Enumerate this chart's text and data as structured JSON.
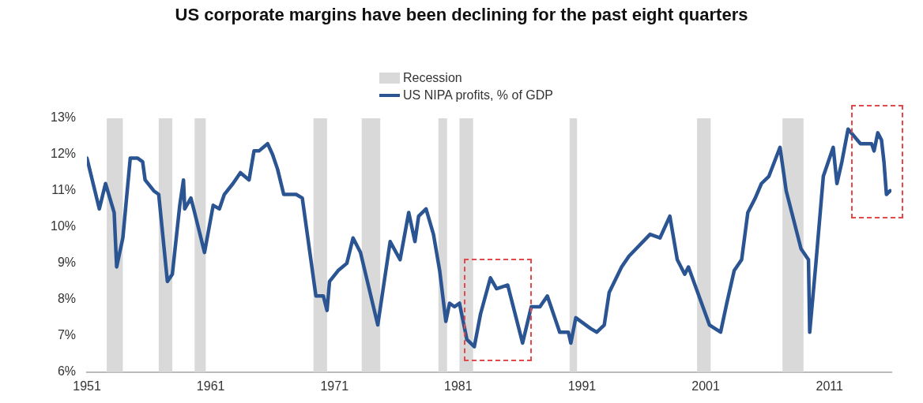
{
  "chart_data": {
    "type": "line",
    "title": "US corporate margins have been declining for the past eight quarters",
    "series": [
      {
        "name": "US NIPA profits, % of GDP",
        "color": "#2b5592",
        "x": [
          1951.0,
          1952.0,
          1952.5,
          1953.2,
          1953.4,
          1953.9,
          1954.5,
          1955.1,
          1955.5,
          1955.7,
          1956.4,
          1956.8,
          1957.5,
          1957.9,
          1958.5,
          1958.8,
          1958.9,
          1959.4,
          1959.7,
          1960.5,
          1961.2,
          1961.7,
          1962.1,
          1962.8,
          1963.4,
          1964.1,
          1964.5,
          1964.9,
          1965.6,
          1966.0,
          1966.4,
          1966.9,
          1967.9,
          1968.4,
          1969.5,
          1970.1,
          1970.4,
          1970.6,
          1971.3,
          1972.0,
          1972.5,
          1973.1,
          1974.5,
          1975.5,
          1976.3,
          1977.0,
          1977.5,
          1977.8,
          1978.4,
          1979.0,
          1979.5,
          1980.0,
          1980.3,
          1980.7,
          1981.1,
          1981.7,
          1982.3,
          1982.8,
          1983.6,
          1984.1,
          1985.0,
          1986.2,
          1986.9,
          1987.6,
          1988.2,
          1989.2,
          1989.9,
          1990.1,
          1990.5,
          1991.7,
          1992.2,
          1992.8,
          1993.2,
          1994.2,
          1994.8,
          1996.5,
          1997.3,
          1998.1,
          1998.7,
          1999.3,
          1999.6,
          2001.3,
          2002.2,
          2002.7,
          2003.3,
          2003.9,
          2004.4,
          2005.0,
          2005.5,
          2006.1,
          2007.0,
          2007.5,
          2008.7,
          2009.3,
          2009.4,
          2009.9,
          2010.5,
          2011.3,
          2011.6,
          2012.0,
          2012.5,
          2013.5,
          2014.4,
          2014.6,
          2014.9,
          2015.2,
          2015.4,
          2015.6,
          2015.9
        ],
        "values": [
          11.9,
          10.5,
          11.2,
          10.4,
          8.9,
          9.7,
          11.9,
          11.9,
          11.8,
          11.3,
          11.0,
          10.9,
          8.5,
          8.7,
          10.6,
          11.3,
          10.5,
          10.8,
          10.4,
          9.3,
          10.6,
          10.5,
          10.9,
          11.2,
          11.5,
          11.3,
          12.1,
          12.1,
          12.3,
          12.0,
          11.6,
          10.9,
          10.9,
          10.8,
          8.1,
          8.1,
          7.7,
          8.5,
          8.8,
          9.0,
          9.7,
          9.3,
          7.3,
          9.6,
          9.1,
          10.4,
          9.6,
          10.3,
          10.5,
          9.8,
          8.8,
          7.4,
          7.9,
          7.8,
          7.9,
          6.9,
          6.7,
          7.6,
          8.6,
          8.3,
          8.4,
          6.8,
          7.8,
          7.8,
          8.1,
          7.1,
          7.1,
          6.8,
          7.5,
          7.2,
          7.1,
          7.3,
          8.2,
          8.9,
          9.2,
          9.8,
          9.7,
          10.3,
          9.1,
          8.7,
          8.9,
          7.3,
          7.1,
          7.9,
          8.8,
          9.1,
          10.4,
          10.8,
          11.2,
          11.4,
          12.2,
          11.0,
          9.4,
          9.1,
          7.1,
          9.0,
          11.4,
          12.2,
          11.2,
          11.8,
          12.7,
          12.3,
          12.3,
          12.1,
          12.6,
          12.4,
          11.8,
          10.9,
          11.0
        ]
      }
    ],
    "bands": [
      {
        "axis": "x",
        "from": 1952.6,
        "to": 1953.9,
        "label": "Recession",
        "color": "#d9d9d9"
      },
      {
        "axis": "x",
        "from": 1956.8,
        "to": 1957.9,
        "color": "#d9d9d9"
      },
      {
        "axis": "x",
        "from": 1959.7,
        "to": 1960.6,
        "color": "#d9d9d9"
      },
      {
        "axis": "x",
        "from": 1969.3,
        "to": 1970.4,
        "color": "#d9d9d9"
      },
      {
        "axis": "x",
        "from": 1973.2,
        "to": 1974.7,
        "color": "#d9d9d9"
      },
      {
        "axis": "x",
        "from": 1979.4,
        "to": 1980.1,
        "color": "#d9d9d9"
      },
      {
        "axis": "x",
        "from": 1981.1,
        "to": 1982.2,
        "color": "#d9d9d9"
      },
      {
        "axis": "x",
        "from": 1990.0,
        "to": 1990.6,
        "color": "#d9d9d9"
      },
      {
        "axis": "x",
        "from": 2000.3,
        "to": 2001.4,
        "color": "#d9d9d9"
      },
      {
        "axis": "x",
        "from": 2007.2,
        "to": 2008.9,
        "color": "#d9d9d9"
      }
    ],
    "xlim": [
      1951,
      2016
    ],
    "xticks": [
      1951,
      1961,
      1971,
      1981,
      1991,
      2001,
      2011
    ],
    "ylim": [
      6,
      13
    ],
    "yticks": [
      {
        "value": 6,
        "label": "6%"
      },
      {
        "value": 7,
        "label": "7%"
      },
      {
        "value": 8,
        "label": "8%"
      },
      {
        "value": 9,
        "label": "9%"
      },
      {
        "value": 10,
        "label": "10%"
      },
      {
        "value": 11,
        "label": "11%"
      },
      {
        "value": 12,
        "label": "12%"
      },
      {
        "value": 13,
        "label": "13%"
      }
    ],
    "grid": false,
    "legend": "top",
    "marker": "none",
    "line_style": "solid"
  }
}
